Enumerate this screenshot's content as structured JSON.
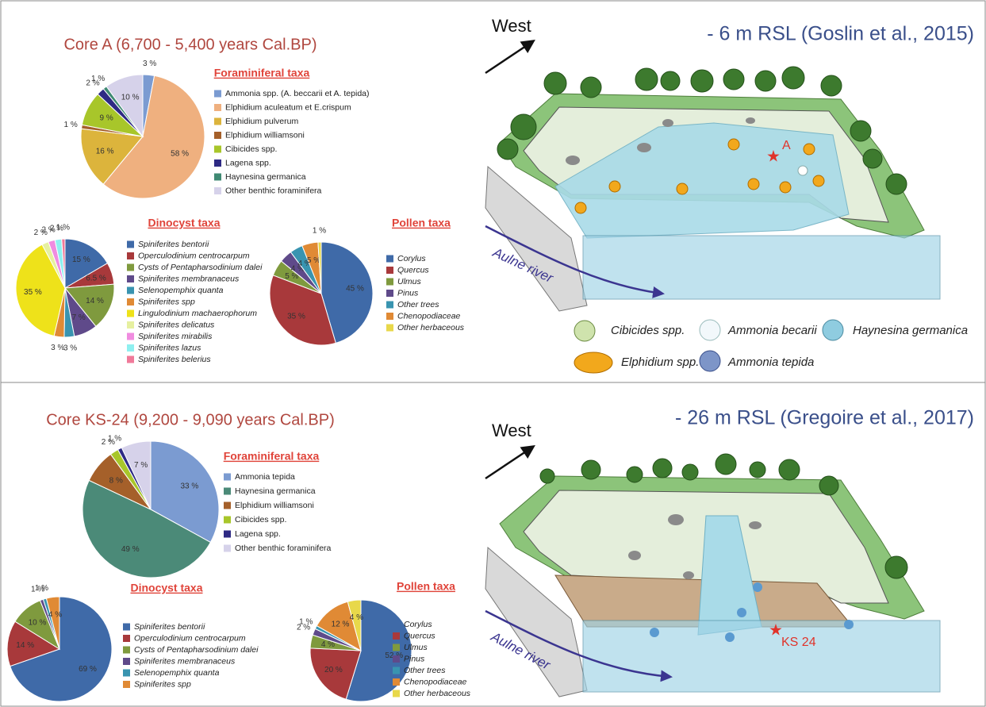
{
  "panels": [
    {
      "title": "Core A (6,700 - 5,400 years Cal.BP)",
      "diagram": {
        "direction": "West",
        "title": "- 6 m RSL (Goslin et al., 2015)",
        "site": "A",
        "river": "Aulne river",
        "legend": [
          "Cibicides spp.",
          "Ammonia becarii",
          "Haynesina germanica",
          "Elphidium spp.",
          "Ammonia tepida"
        ]
      }
    },
    {
      "title": "Core KS-24 (9,200 - 9,090 years Cal.BP)",
      "diagram": {
        "direction": "West",
        "title": "- 26 m RSL (Gregoire et al., 2017)",
        "site": "KS 24",
        "river": "Aulne river"
      }
    }
  ],
  "chart_data": [
    {
      "type": "pie",
      "title": "Foraminiferal taxa",
      "categories": [
        "Ammonia spp. (A. beccarii et A. tepida)",
        "Elphidium aculeatum et E.crispum",
        "Elphidium pulverum",
        "Elphidium williamsoni",
        "Cibicides spp.",
        "Lagena spp.",
        "Haynesina germanica",
        "Other benthic foraminifera"
      ],
      "values": [
        3,
        58,
        16,
        1,
        9,
        2,
        1,
        10
      ],
      "value_labels": [
        "3 %",
        "58 %",
        "16 %",
        "1 %",
        "9 %",
        "2 %",
        "1 %",
        "10 %"
      ],
      "colors": [
        "#7b9bd1",
        "#efb07f",
        "#dcb43c",
        "#a5602a",
        "#a8c62a",
        "#2e2a84",
        "#3f8a73",
        "#d6d2ea"
      ]
    },
    {
      "type": "pie",
      "title": "Dinocyst taxa",
      "categories": [
        "Spiniferites bentorii",
        "Operculodinium centrocarpum",
        "Cysts of Pentapharsodinium dalei",
        "Spiniferites membranaceus",
        "Selenopemphix quanta",
        "Spiniferites spp",
        "Lingulodinium machaerophorum",
        "Spiniferites delicatus",
        "Spiniferites mirabilis",
        "Spiniferites lazus",
        "Spiniferites belerius"
      ],
      "values": [
        15,
        6.5,
        14,
        7,
        3,
        3,
        35,
        2,
        2,
        2,
        1
      ],
      "value_labels": [
        "15 %",
        "6.5 %",
        "14 %",
        "7 %",
        "3 %",
        "3 %",
        "35 %",
        "2 %",
        "2 %",
        "2 %",
        "1 %"
      ],
      "colors": [
        "#3f6aa8",
        "#a8393b",
        "#7f9a3e",
        "#5f4a8a",
        "#3994b0",
        "#e08a35",
        "#eee21a",
        "#e6f0a0",
        "#f08ce0",
        "#8ff0f0",
        "#f07a9a"
      ]
    },
    {
      "type": "pie",
      "title": "Pollen taxa",
      "categories": [
        "Corylus",
        "Quercus",
        "Ulmus",
        "Pinus",
        "Other trees",
        "Chenopodiaceae",
        "Other herbaceous"
      ],
      "values": [
        45,
        35,
        5,
        4,
        4,
        5,
        1
      ],
      "value_labels": [
        "45 %",
        "35 %",
        "5 %",
        "4 %",
        "4 %",
        "5 %",
        "1 %"
      ],
      "colors": [
        "#3f6aa8",
        "#a8393b",
        "#7f9a3e",
        "#5f4a8a",
        "#3994b0",
        "#e08a35",
        "#e8d84a"
      ]
    },
    {
      "type": "pie",
      "title": "Foraminiferal taxa",
      "categories": [
        "Ammonia tepida",
        "Haynesina germanica",
        "Elphidium williamsoni",
        "Cibicides spp.",
        "Lagena spp.",
        "Other benthic foraminifera"
      ],
      "values": [
        33,
        49,
        8,
        2,
        1,
        7
      ],
      "value_labels": [
        "33 %",
        "49 %",
        "8 %",
        "2 %",
        "1 %",
        "7 %"
      ],
      "colors": [
        "#7b9bd1",
        "#4b8a78",
        "#a5602a",
        "#a8c62a",
        "#2e2a84",
        "#d6d2ea"
      ]
    },
    {
      "type": "pie",
      "title": "Dinocyst taxa",
      "categories": [
        "Spiniferites bentorii",
        "Operculodinium centrocarpum",
        "Cysts of Pentapharsodinium dalei",
        "Spiniferites membranaceus",
        "Selenopemphix quanta",
        "Spiniferites spp"
      ],
      "values": [
        69,
        14,
        10,
        1,
        1,
        4
      ],
      "value_labels": [
        "69 %",
        "14 %",
        "10 %",
        "1 %",
        "1 %",
        "4 %"
      ],
      "colors": [
        "#3f6aa8",
        "#a8393b",
        "#7f9a3e",
        "#5f4a8a",
        "#3994b0",
        "#e08a35"
      ]
    },
    {
      "type": "pie",
      "title": "Pollen taxa",
      "categories": [
        "Corylus",
        "Quercus",
        "Ulmus",
        "Pinus",
        "Other trees",
        "Chenopodiaceae",
        "Other herbaceous"
      ],
      "values": [
        52,
        20,
        4,
        2,
        1,
        12,
        4
      ],
      "value_labels": [
        "52 %",
        "20 %",
        "4 %",
        "2 %",
        "1 %",
        "12 %",
        "4 %"
      ],
      "colors": [
        "#3f6aa8",
        "#a8393b",
        "#7f9a3e",
        "#5f4a8a",
        "#3994b0",
        "#e08a35",
        "#e8d84a"
      ]
    }
  ]
}
